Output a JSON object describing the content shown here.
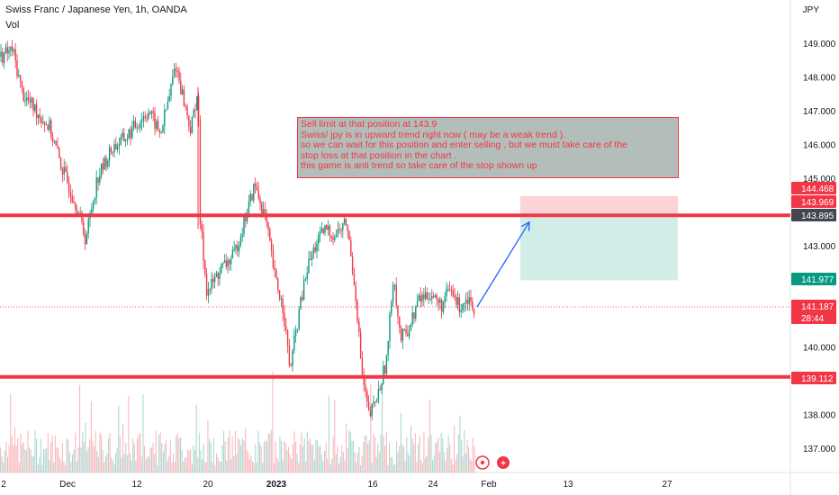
{
  "header": {
    "symbol_title": "Swiss Franc / Japanese Yen, 1h, OANDA",
    "volume_label": "Vol",
    "currency": "JPY"
  },
  "annotation": {
    "lines": [
      "Sell limit at that position at 143.9",
      "Swiss/ jpy is in upward trend right now ( may be a weak trend ).",
      "so we can wait for this position and enter selling , but we must take care of the",
      "stop loss at that position in the chart  .",
      "this game is anti trend so take care of the stop shown up"
    ]
  },
  "price_badges": [
    {
      "label": "144.468",
      "color": "#f23645"
    },
    {
      "label": "143.969",
      "color": "#f23645"
    },
    {
      "label": "143.895",
      "color": "#434651"
    },
    {
      "label": "141.977",
      "color": "#089981"
    },
    {
      "label": "141.187",
      "color": "#f23645"
    },
    {
      "label": "28:44",
      "color": "#f23645"
    },
    {
      "label": "139.112",
      "color": "#f23645"
    }
  ],
  "chart_data": {
    "type": "candlestick",
    "title": "Swiss Franc / Japanese Yen, 1h, OANDA",
    "y_axis": {
      "side": "right",
      "unit": "JPY",
      "ticks": [
        "149.000",
        "148.000",
        "147.000",
        "146.000",
        "145.000",
        "144.000",
        "143.000",
        "142.000",
        "141.000",
        "140.000",
        "139.000",
        "138.000",
        "137.000"
      ],
      "range": [
        136.5,
        149.5
      ]
    },
    "x_axis": {
      "ticks": [
        {
          "label": "2",
          "bold": false
        },
        {
          "label": "Dec",
          "bold": false
        },
        {
          "label": "12",
          "bold": false
        },
        {
          "label": "20",
          "bold": false
        },
        {
          "label": "2023",
          "bold": true
        },
        {
          "label": "16",
          "bold": false
        },
        {
          "label": "24",
          "bold": false
        },
        {
          "label": "Feb",
          "bold": false
        },
        {
          "label": "13",
          "bold": false
        },
        {
          "label": "27",
          "bold": false
        }
      ]
    },
    "price_path": [
      {
        "x": 0,
        "y": 148.6
      },
      {
        "x": 14,
        "y": 148.8
      },
      {
        "x": 25,
        "y": 147.5
      },
      {
        "x": 40,
        "y": 147.0
      },
      {
        "x": 55,
        "y": 146.5
      },
      {
        "x": 70,
        "y": 145.2
      },
      {
        "x": 85,
        "y": 144.2
      },
      {
        "x": 95,
        "y": 143.2
      },
      {
        "x": 108,
        "y": 145.0
      },
      {
        "x": 125,
        "y": 145.9
      },
      {
        "x": 140,
        "y": 146.2
      },
      {
        "x": 152,
        "y": 146.6
      },
      {
        "x": 165,
        "y": 147.0
      },
      {
        "x": 178,
        "y": 146.3
      },
      {
        "x": 188,
        "y": 147.4
      },
      {
        "x": 195,
        "y": 148.4
      },
      {
        "x": 205,
        "y": 147.2
      },
      {
        "x": 212,
        "y": 146.4
      },
      {
        "x": 220,
        "y": 147.7
      },
      {
        "x": 222,
        "y": 143.8
      },
      {
        "x": 230,
        "y": 141.6
      },
      {
        "x": 245,
        "y": 142.3
      },
      {
        "x": 260,
        "y": 142.7
      },
      {
        "x": 270,
        "y": 143.6
      },
      {
        "x": 283,
        "y": 144.8
      },
      {
        "x": 295,
        "y": 143.8
      },
      {
        "x": 305,
        "y": 142.1
      },
      {
        "x": 315,
        "y": 141.1
      },
      {
        "x": 322,
        "y": 139.3
      },
      {
        "x": 332,
        "y": 141.0
      },
      {
        "x": 342,
        "y": 142.4
      },
      {
        "x": 352,
        "y": 143.1
      },
      {
        "x": 362,
        "y": 143.5
      },
      {
        "x": 372,
        "y": 143.3
      },
      {
        "x": 385,
        "y": 143.7
      },
      {
        "x": 395,
        "y": 141.6
      },
      {
        "x": 402,
        "y": 139.2
      },
      {
        "x": 410,
        "y": 137.9
      },
      {
        "x": 420,
        "y": 138.6
      },
      {
        "x": 430,
        "y": 139.7
      },
      {
        "x": 437,
        "y": 142.2
      },
      {
        "x": 445,
        "y": 140.2
      },
      {
        "x": 455,
        "y": 140.6
      },
      {
        "x": 465,
        "y": 141.4
      },
      {
        "x": 478,
        "y": 141.6
      },
      {
        "x": 490,
        "y": 141.2
      },
      {
        "x": 500,
        "y": 141.7
      },
      {
        "x": 510,
        "y": 141.2
      },
      {
        "x": 520,
        "y": 141.5
      },
      {
        "x": 528,
        "y": 141.1
      }
    ],
    "horizontal_lines": [
      {
        "price": 143.9,
        "color": "#f23645"
      },
      {
        "price": 139.112,
        "color": "#f23645"
      }
    ],
    "position": {
      "side": "short",
      "stop": 144.468,
      "entry": 143.969,
      "target": 141.977
    },
    "current_price": 141.187,
    "projection_arrow": {
      "from_price": 141.187,
      "to_price": 143.7
    }
  }
}
